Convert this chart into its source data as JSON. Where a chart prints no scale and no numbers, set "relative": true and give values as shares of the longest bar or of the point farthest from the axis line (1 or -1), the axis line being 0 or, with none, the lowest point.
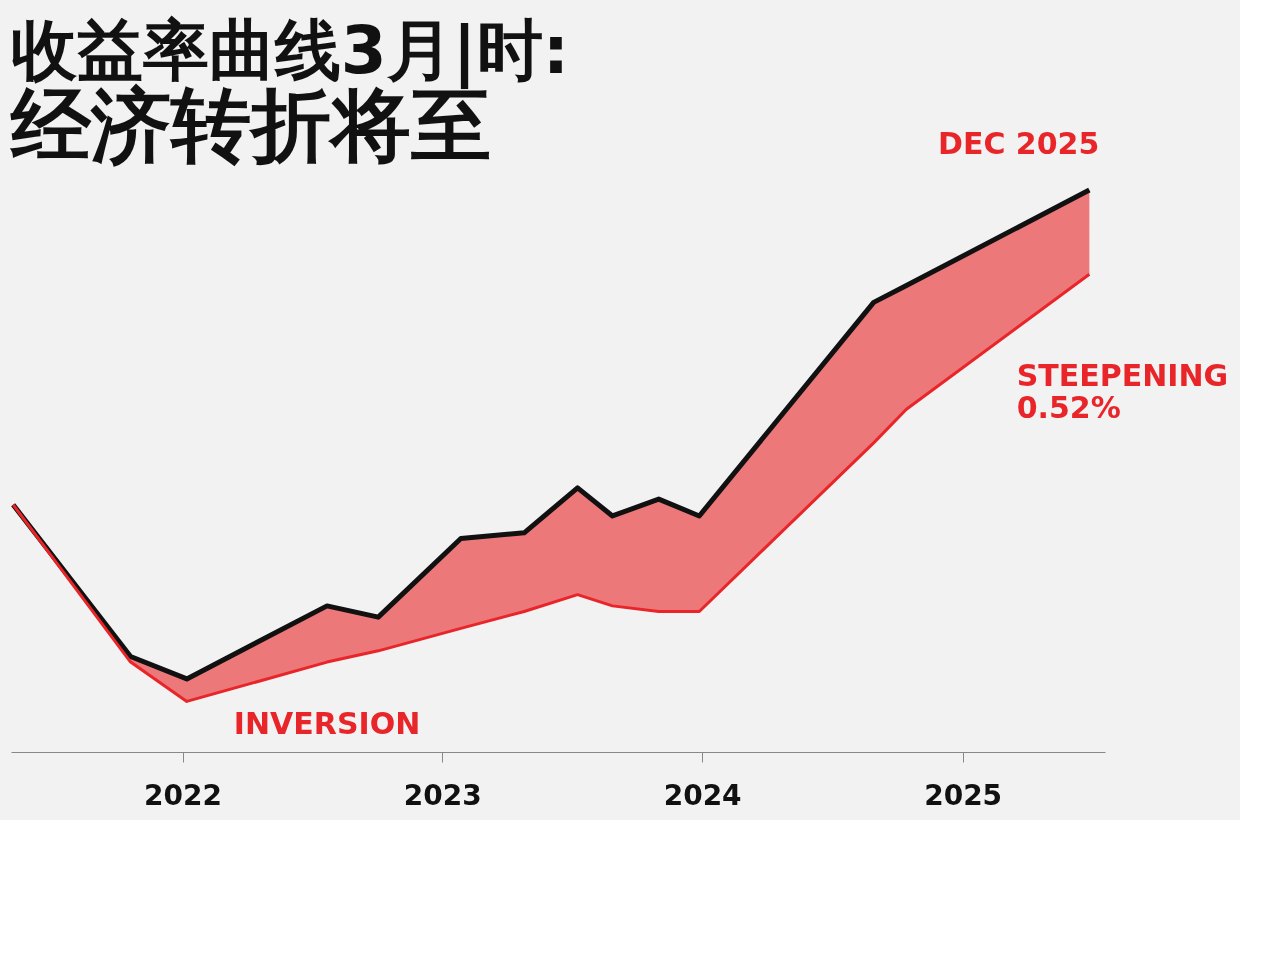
{
  "chart_data": {
    "type": "line",
    "title": "收益率曲线3月|时:",
    "subtitle": "经济转折将至",
    "relative": true,
    "x": [
      "2021-05-08",
      "2021-10-20",
      "2022-01-07",
      "2022-07-23",
      "2022-10-03",
      "2023-01-27",
      "2023-04-26",
      "2023-07-10",
      "2023-08-28",
      "2023-11-01",
      "2023-12-28",
      "2024-08-29",
      "2024-10-14",
      "2025-06-28"
    ],
    "series": [
      {
        "color": "#111111",
        "values": [
          0.44,
          0.17,
          0.13,
          0.26,
          0.24,
          0.38,
          0.39,
          0.47,
          0.42,
          0.45,
          0.42,
          0.8,
          0.83,
          1.0
        ]
      },
      {
        "color": "#e8262a",
        "values": [
          0.44,
          0.16,
          0.09,
          0.16,
          0.18,
          0.22,
          0.25,
          0.28,
          0.26,
          0.25,
          0.25,
          0.55,
          0.61,
          0.85
        ],
        "lower": [
          0.44,
          0.16,
          0.09,
          0.16,
          0.18,
          0.22,
          0.25,
          0.28,
          0.26,
          0.25,
          0.25,
          0.55,
          0.61,
          0.85
        ],
        "upper": [
          0.44,
          0.17,
          0.13,
          0.26,
          0.24,
          0.38,
          0.39,
          0.47,
          0.42,
          0.45,
          0.42,
          0.8,
          0.83,
          1.0
        ]
      }
    ],
    "xlim": [
      "2021-05-05",
      "2025-07-20"
    ],
    "xticks": [
      "2022",
      "2023",
      "2024",
      "2025"
    ],
    "annotations": [
      {
        "text": "INVERSION",
        "x": "2022-07-23",
        "y": 0.16
      },
      {
        "text": "STEEPENING\n0.52%",
        "x": "2025-04-15",
        "y": 0.78
      },
      {
        "text": "DEC 2025",
        "x": "2025-06-28",
        "y": 1.0
      }
    ],
    "grid": false,
    "marker": "none",
    "line_style": "solid"
  }
}
